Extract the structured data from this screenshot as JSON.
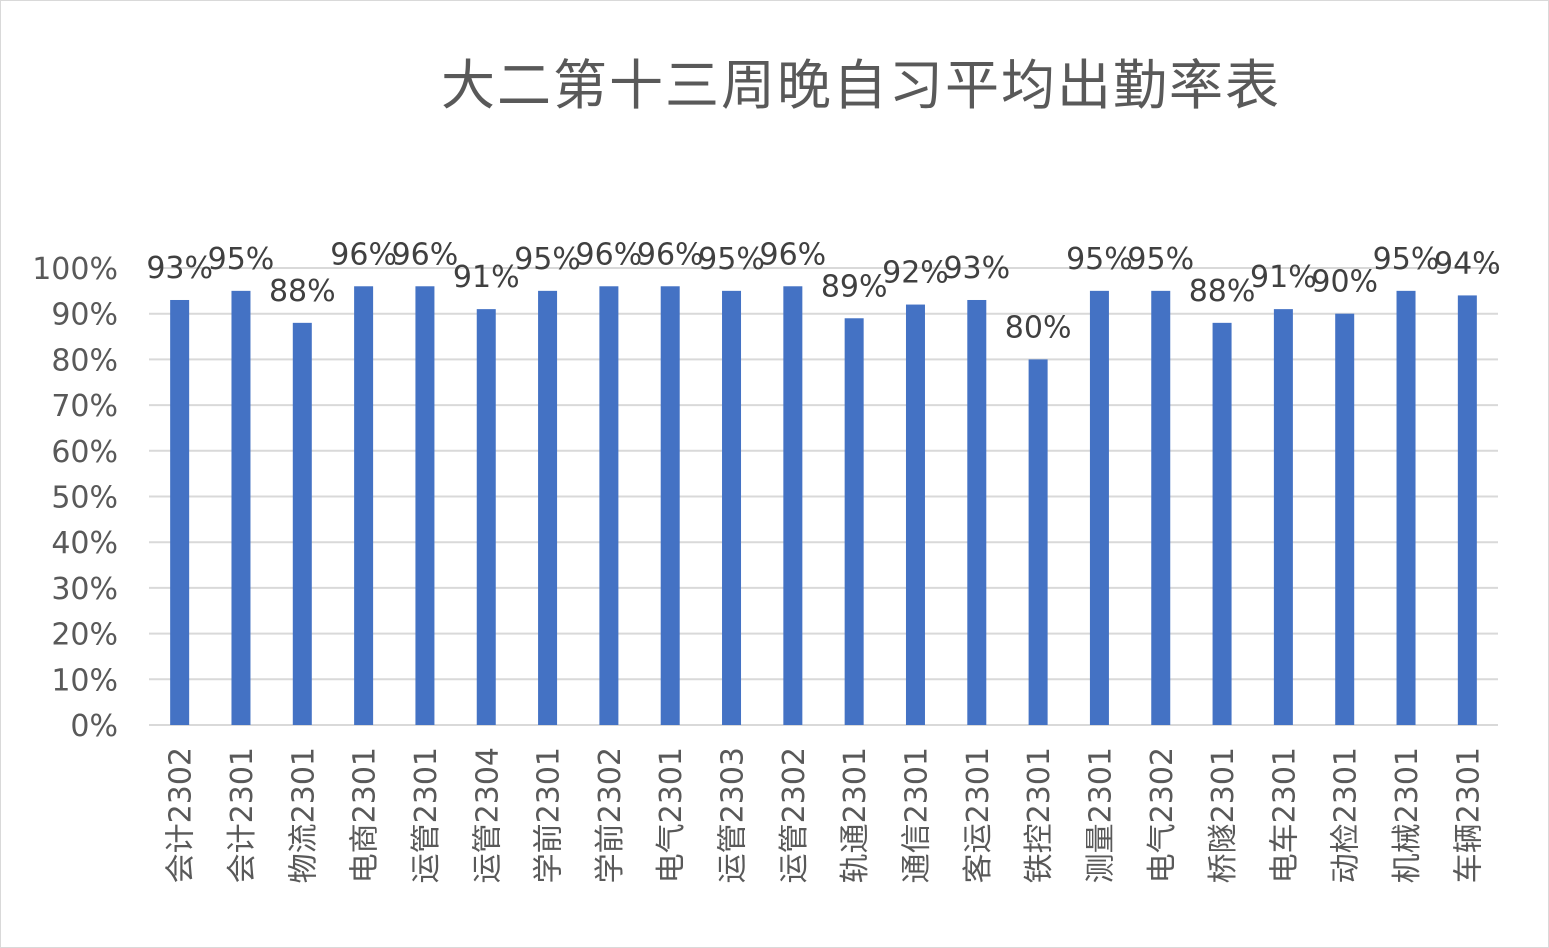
{
  "chart_data": {
    "type": "bar",
    "title": "大二第十三周晚自习平均出勤率表",
    "xlabel": "",
    "ylabel": "",
    "ylim": [
      0,
      100
    ],
    "yticks": [
      "0%",
      "10%",
      "20%",
      "30%",
      "40%",
      "50%",
      "60%",
      "70%",
      "80%",
      "90%",
      "100%"
    ],
    "grid": true,
    "legend": "none",
    "bar_color": "#4472c4",
    "categories": [
      "会计2302",
      "会计2301",
      "物流2301",
      "电商2301",
      "运管2301",
      "运管2304",
      "学前2301",
      "学前2302",
      "电气2301",
      "运管2303",
      "运管2302",
      "轨通2301",
      "通信2301",
      "客运2301",
      "铁控2301",
      "测量2301",
      "电气2302",
      "桥隧2301",
      "电车2301",
      "动检2301",
      "机械2301",
      "车辆2301"
    ],
    "values": [
      93,
      95,
      88,
      96,
      96,
      91,
      95,
      96,
      96,
      95,
      96,
      89,
      92,
      93,
      80,
      95,
      95,
      88,
      91,
      90,
      95,
      94
    ],
    "data_labels": [
      "93%",
      "95%",
      "88%",
      "96%",
      "96%",
      "91%",
      "95%",
      "96%",
      "96%",
      "95%",
      "96%",
      "89%",
      "92%",
      "93%",
      "80%",
      "95%",
      "95%",
      "88%",
      "91%",
      "90%",
      "95%",
      "94%"
    ]
  }
}
